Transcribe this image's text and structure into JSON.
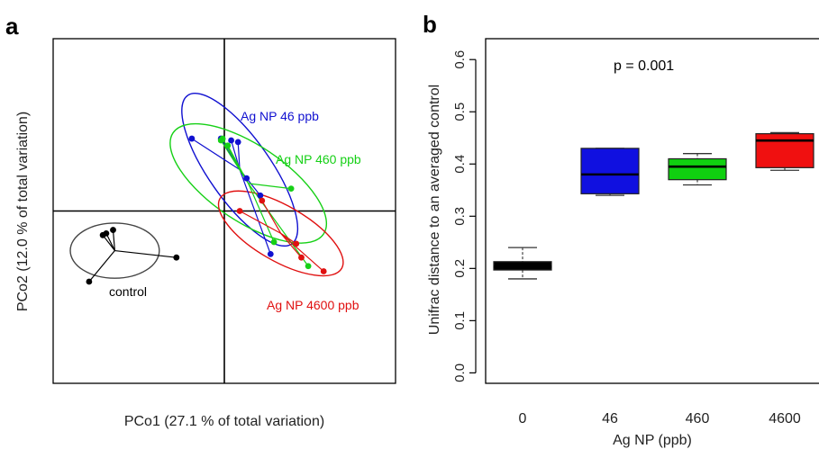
{
  "panel_a_letter": "a",
  "panel_b_letter": "b",
  "chart_data": [
    {
      "type": "scatter",
      "panel": "a",
      "xlabel": "PCo1 (27.1 % of total variation)",
      "ylabel": "PCo2 (12.0 % of total variation)",
      "xlim": [
        -1,
        1
      ],
      "ylim": [
        -1,
        1
      ],
      "axis_ticks_shown": false,
      "reference_lines": {
        "x": 0,
        "y": 0
      },
      "style": "spider plot with 95% ellipse per group",
      "series": [
        {
          "name": "control",
          "color": "#000000",
          "centroid": [
            -0.64,
            -0.23
          ],
          "points": [
            [
              -0.71,
              -0.14
            ],
            [
              -0.69,
              -0.13
            ],
            [
              -0.65,
              -0.11
            ],
            [
              -0.28,
              -0.27
            ],
            [
              -0.79,
              -0.41
            ]
          ],
          "ellipse": {
            "rx": 0.26,
            "ry": 0.16,
            "angle": 0
          }
        },
        {
          "name": "Ag NP 46 ppb",
          "color": "#1010d0",
          "centroid": [
            0.09,
            0.24
          ],
          "points": [
            [
              -0.19,
              0.42
            ],
            [
              -0.02,
              0.42
            ],
            [
              0.04,
              0.41
            ],
            [
              0.08,
              0.4
            ],
            [
              0.13,
              0.19
            ],
            [
              0.21,
              0.09
            ],
            [
              0.27,
              -0.25
            ]
          ],
          "ellipse": {
            "rx": 0.53,
            "ry": 0.18,
            "angle": 55
          }
        },
        {
          "name": "Ag NP 460 ppb",
          "color": "#16d016",
          "centroid": [
            0.14,
            0.16
          ],
          "points": [
            [
              -0.02,
              0.41
            ],
            [
              -0.01,
              0.42
            ],
            [
              0.02,
              0.38
            ],
            [
              0.39,
              0.13
            ],
            [
              0.29,
              -0.18
            ],
            [
              0.49,
              -0.32
            ]
          ],
          "ellipse": {
            "rx": 0.53,
            "ry": 0.22,
            "angle": 34
          }
        },
        {
          "name": "Ag NP 4600 ppb",
          "color": "#e01010",
          "centroid": [
            0.33,
            -0.13
          ],
          "points": [
            [
              0.09,
              0.0
            ],
            [
              0.22,
              0.06
            ],
            [
              0.42,
              -0.19
            ],
            [
              0.45,
              -0.27
            ],
            [
              0.58,
              -0.35
            ]
          ],
          "ellipse": {
            "rx": 0.41,
            "ry": 0.16,
            "angle": 30
          }
        }
      ],
      "annotations": [
        "Ag NP 46 ppb",
        "Ag NP 460 ppb",
        "control",
        "Ag NP 4600 ppb"
      ]
    },
    {
      "type": "boxplot",
      "panel": "b",
      "xlabel": "Ag NP (ppb)",
      "ylabel": "Unifrac distance to an averaged control",
      "ylim": [
        -0.02,
        0.64
      ],
      "yticks": [
        0.0,
        0.1,
        0.2,
        0.3,
        0.4,
        0.5,
        0.6
      ],
      "ytick_labels": [
        "0.0",
        "0.1",
        "0.2",
        "0.3",
        "0.4",
        "0.5",
        "0.6"
      ],
      "categories": [
        "0",
        "46",
        "460",
        "4600"
      ],
      "annotation": "p = 0.001",
      "boxes": [
        {
          "category": "0",
          "color": "#000000",
          "whisker_low": 0.18,
          "q1": 0.197,
          "median": 0.203,
          "q3": 0.213,
          "whisker_high": 0.24
        },
        {
          "category": "46",
          "color": "#1010e0",
          "whisker_low": 0.34,
          "q1": 0.343,
          "median": 0.38,
          "q3": 0.43,
          "whisker_high": 0.43
        },
        {
          "category": "460",
          "color": "#10d010",
          "whisker_low": 0.36,
          "q1": 0.37,
          "median": 0.395,
          "q3": 0.41,
          "whisker_high": 0.42
        },
        {
          "category": "4600",
          "color": "#f01010",
          "whisker_low": 0.388,
          "q1": 0.393,
          "median": 0.445,
          "q3": 0.458,
          "whisker_high": 0.46
        }
      ]
    }
  ]
}
